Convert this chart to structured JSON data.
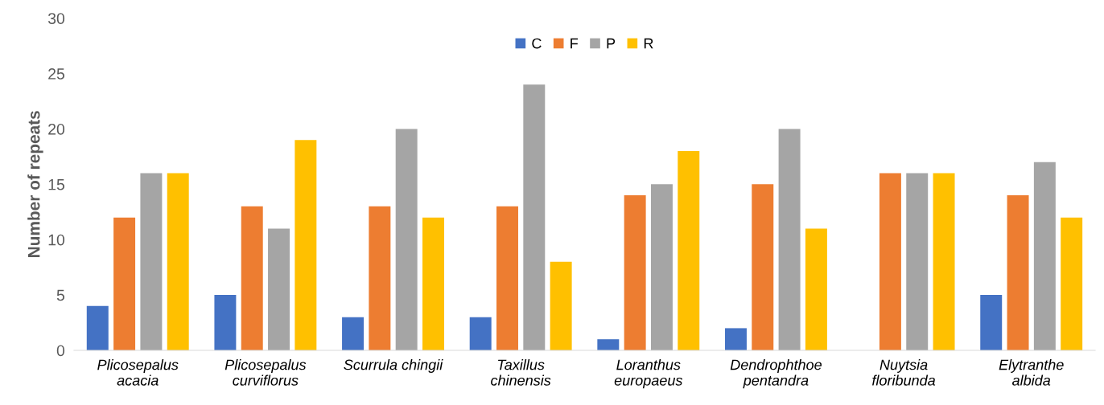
{
  "chart_data": {
    "type": "bar",
    "ylabel": "Number of repeats",
    "categories": [
      "Plicosepalus\nacacia",
      "Plicosepalus\ncurviflorus",
      "Scurrula chingii",
      "Taxillus\nchinensis",
      "Loranthus\neuropaeus",
      "Dendrophthoe\npentandra",
      "Nuytsia\nfloribunda",
      "Elytranthe\nalbida"
    ],
    "series": [
      {
        "name": "C",
        "color": "#4472c4",
        "values": [
          4,
          5,
          3,
          3,
          1,
          2,
          0,
          5
        ]
      },
      {
        "name": "F",
        "color": "#ed7d31",
        "values": [
          12,
          13,
          13,
          13,
          14,
          15,
          16,
          14
        ]
      },
      {
        "name": "P",
        "color": "#a5a5a5",
        "values": [
          16,
          11,
          20,
          24,
          15,
          20,
          16,
          17
        ]
      },
      {
        "name": "R",
        "color": "#ffc000",
        "values": [
          16,
          19,
          12,
          8,
          18,
          11,
          16,
          12
        ]
      }
    ],
    "ylim": [
      0,
      30
    ],
    "yticks": [
      0,
      5,
      10,
      15,
      20,
      25,
      30
    ],
    "grid": false,
    "legend": "top"
  }
}
